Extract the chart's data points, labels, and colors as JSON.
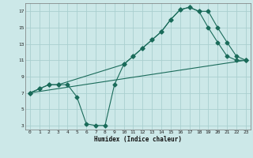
{
  "xlabel": "Humidex (Indice chaleur)",
  "bg_color": "#cce8e8",
  "grid_color": "#aacfcf",
  "line_color": "#1a6b5a",
  "xlim": [
    -0.5,
    23.5
  ],
  "ylim": [
    2.5,
    18.0
  ],
  "xticks": [
    0,
    1,
    2,
    3,
    4,
    5,
    6,
    7,
    8,
    9,
    10,
    11,
    12,
    13,
    14,
    15,
    16,
    17,
    18,
    19,
    20,
    21,
    22,
    23
  ],
  "yticks": [
    3,
    5,
    7,
    9,
    11,
    13,
    15,
    17
  ],
  "line_wavy": {
    "x": [
      0,
      1,
      2,
      3,
      4,
      5,
      6,
      7,
      8,
      9,
      10,
      11,
      12,
      13,
      14,
      15,
      16,
      17,
      18,
      19,
      20,
      21,
      22,
      23
    ],
    "y": [
      7,
      7.5,
      8,
      8,
      8,
      6.5,
      3.2,
      3.0,
      3.0,
      8.0,
      10.5,
      11.5,
      12.5,
      13.5,
      14.5,
      16.0,
      17.2,
      17.5,
      17.0,
      15.0,
      13.2,
      11.5,
      11.0,
      11.0
    ]
  },
  "line_top": {
    "x": [
      0,
      1,
      2,
      3,
      10,
      11,
      12,
      13,
      14,
      15,
      16,
      17,
      18,
      19,
      20,
      21,
      22,
      23
    ],
    "y": [
      7,
      7.5,
      8,
      8,
      10.5,
      11.5,
      12.5,
      13.5,
      14.5,
      16.0,
      17.2,
      17.5,
      17.0,
      17.0,
      15.0,
      13.2,
      11.5,
      11.0
    ]
  },
  "line_diag": {
    "x": [
      0,
      23
    ],
    "y": [
      7,
      11.0
    ]
  }
}
